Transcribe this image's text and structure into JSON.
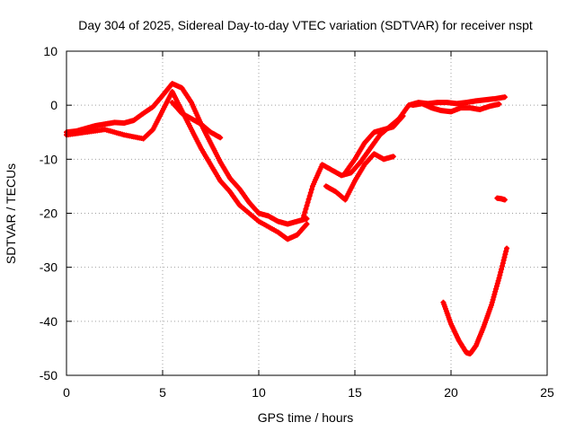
{
  "chart_data": {
    "type": "scatter",
    "title": "Day 304 of 2025, Sidereal Day-to-day VTEC variation (SDTVAR) for receiver nspt",
    "xlabel": "GPS time / hours",
    "ylabel": "SDTVAR / TECUs",
    "xlim": [
      0,
      25
    ],
    "ylim": [
      -50,
      10
    ],
    "xticks": [
      0,
      5,
      10,
      15,
      20,
      25
    ],
    "yticks": [
      10,
      0,
      -10,
      -20,
      -30,
      -40,
      -50
    ],
    "grid": true,
    "marker": "plus",
    "color": "#ff0000",
    "series": [
      {
        "name": "track-a",
        "x": [
          0.0,
          0.5,
          1.0,
          1.5,
          2.0,
          2.5,
          3.0,
          3.5,
          4.0,
          4.5,
          5.0,
          5.5,
          6.0,
          6.5,
          7.0,
          7.5,
          8.0,
          8.5,
          9.0,
          9.5,
          10.0,
          10.5,
          11.0,
          11.5,
          12.0,
          12.5
        ],
        "y": [
          -5.0,
          -4.8,
          -4.3,
          -3.8,
          -3.5,
          -3.2,
          -3.3,
          -2.8,
          -1.5,
          -0.3,
          1.8,
          4.0,
          3.2,
          0.5,
          -3.5,
          -7.0,
          -10.5,
          -13.5,
          -15.5,
          -18.0,
          -20.0,
          -20.5,
          -21.5,
          -22.0,
          -21.5,
          -21.0
        ]
      },
      {
        "name": "track-b",
        "x": [
          0.0,
          1.0,
          2.0,
          3.0,
          4.0,
          4.5,
          5.0,
          5.5,
          6.0,
          6.5,
          7.0,
          7.5,
          8.0,
          8.5,
          9.0,
          10.0,
          11.0,
          11.5,
          12.0,
          12.5
        ],
        "y": [
          -5.5,
          -5.0,
          -4.5,
          -5.5,
          -6.2,
          -4.5,
          -1.0,
          2.5,
          -1.0,
          -4.5,
          -8.0,
          -11.0,
          -14.0,
          -16.0,
          -18.5,
          -21.5,
          -23.5,
          -24.8,
          -24.0,
          -22.0
        ]
      },
      {
        "name": "track-c",
        "x": [
          5.5,
          6.0,
          6.5,
          7.0,
          7.5,
          8.0
        ],
        "y": [
          0.5,
          -1.5,
          -2.5,
          -3.5,
          -5.0,
          -6.0
        ]
      },
      {
        "name": "track-d",
        "x": [
          12.3,
          12.8,
          13.3,
          13.8,
          14.3,
          14.8,
          15.3,
          15.8,
          16.3,
          16.8,
          17.3,
          17.8,
          18.3,
          18.8,
          19.3,
          19.8,
          20.3,
          20.8,
          21.3,
          21.8,
          22.3,
          22.8
        ],
        "y": [
          -21.0,
          -15.0,
          -11.0,
          -12.0,
          -13.0,
          -12.5,
          -10.5,
          -8.0,
          -5.5,
          -4.0,
          -2.5,
          0.0,
          0.5,
          0.3,
          0.5,
          0.5,
          0.3,
          0.5,
          0.8,
          1.0,
          1.2,
          1.5
        ]
      },
      {
        "name": "track-e",
        "x": [
          13.5,
          14.0,
          14.5,
          15.0,
          15.5,
          16.0,
          16.5,
          17.0
        ],
        "y": [
          -15.0,
          -16.0,
          -17.5,
          -14.0,
          -11.0,
          -9.0,
          -10.0,
          -9.5
        ]
      },
      {
        "name": "track-f",
        "x": [
          14.5,
          15.0,
          15.5,
          16.0,
          16.5,
          17.0,
          17.5
        ],
        "y": [
          -12.5,
          -10.0,
          -7.0,
          -5.0,
          -4.5,
          -4.0,
          -2.0
        ]
      },
      {
        "name": "track-g",
        "x": [
          18.0,
          18.5,
          19.0,
          19.5,
          20.0,
          20.5,
          21.0,
          21.5,
          22.0,
          22.5
        ],
        "y": [
          0.0,
          0.3,
          -0.5,
          -1.0,
          -1.2,
          -0.5,
          -0.5,
          -0.8,
          -0.2,
          0.2
        ]
      },
      {
        "name": "track-h",
        "x": [
          19.6,
          20.0,
          20.4,
          20.8,
          21.0,
          21.3,
          21.7,
          22.1,
          22.5,
          22.9
        ],
        "y": [
          -36.5,
          -40.5,
          -43.5,
          -45.8,
          -46.0,
          -44.5,
          -41.0,
          -37.0,
          -32.0,
          -26.5
        ]
      },
      {
        "name": "track-i",
        "x": [
          22.4,
          22.6,
          22.8
        ],
        "y": [
          -17.2,
          -17.3,
          -17.5
        ]
      }
    ]
  }
}
